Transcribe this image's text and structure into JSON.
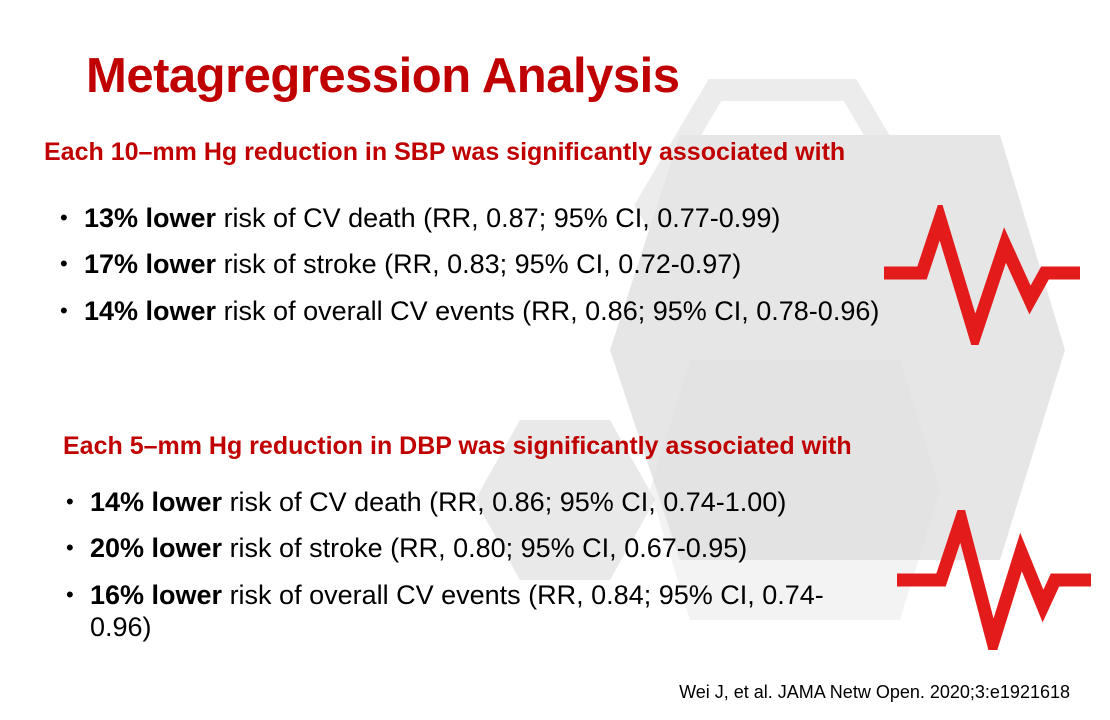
{
  "title": "Metagregression Analysis",
  "sections": [
    {
      "heading": "Each 10–mm Hg reduction in SBP was significantly associated with",
      "items": [
        {
          "strong": "13% lower",
          "rest": " risk of CV death (RR, 0.87; 95% CI, 0.77-0.99)"
        },
        {
          "strong": "17% lower",
          "rest": " risk of stroke (RR, 0.83; 95% CI, 0.72-0.97)"
        },
        {
          "strong": "14% lower",
          "rest": " risk of overall CV events (RR, 0.86; 95% CI, 0.78-0.96)"
        }
      ]
    },
    {
      "heading": "Each 5–mm Hg reduction in DBP was significantly associated with",
      "items": [
        {
          "strong": "14% lower",
          "rest": " risk of  CV death (RR, 0.86; 95% CI, 0.74-1.00)"
        },
        {
          "strong": "20% lower",
          "rest": " risk of stroke (RR, 0.80; 95% CI, 0.67-0.95)"
        },
        {
          "strong": "16% lower",
          "rest": " risk of overall CV events (RR, 0.84; 95% CI, 0.74-0.96)"
        }
      ]
    }
  ],
  "citation": "Wei J, et al. JAMA Netw Open. 2020;3:e1921618",
  "icons": {
    "decor": "heartbeat-pulse-icon",
    "background": "hexagon-shapes"
  },
  "colors": {
    "accent": "#c00000",
    "pulse": "#e31b1b",
    "hex": "#e6e6e6"
  }
}
